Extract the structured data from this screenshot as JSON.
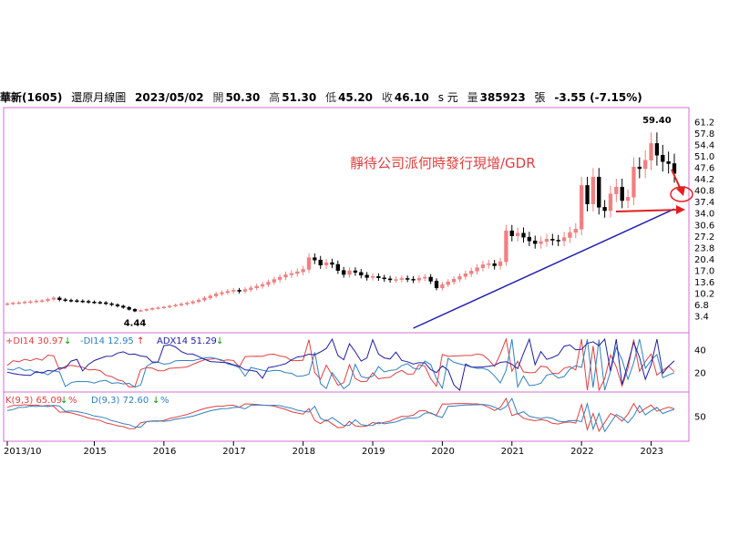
{
  "header": {
    "stock": "華新(1605)",
    "chart_name": "還原月線圖",
    "date": "2023/05/02",
    "open_label": "開",
    "open": "50.30",
    "high_label": "高",
    "high": "51.30",
    "low_label": "低",
    "low": "45.20",
    "close_label": "收",
    "close": "46.10",
    "unit": "s 元",
    "volume_label": "量",
    "volume": "385923",
    "volume_unit": "張",
    "change": "-3.55 (-7.15%)"
  },
  "annotation": "靜待公司派何時發行現增/GDR",
  "colors": {
    "up": "#f08080",
    "down": "#000000",
    "plus_di": "#e04040",
    "minus_di": "#3080c0",
    "adx": "#2020a0",
    "k": "#e04040",
    "d": "#3080c0",
    "trendline": "#2020b0",
    "arrow": "#e02020",
    "frame": "#d070d0"
  },
  "chart_data": [
    {
      "type": "candlestick",
      "title": "",
      "y_ticks": [
        61.2,
        57.8,
        54.4,
        51.0,
        47.6,
        44.2,
        40.8,
        37.4,
        34.0,
        30.6,
        27.2,
        23.8,
        20.4,
        17.0,
        13.6,
        10.2,
        6.8,
        3.4
      ],
      "ylim": [
        0,
        64.6
      ],
      "x_labels": [
        "2013/10",
        "2015",
        "2016",
        "2017",
        "2018",
        "2019",
        "2020",
        "2021",
        "2022",
        "2023"
      ],
      "x_label_months": [
        0,
        15,
        27,
        39,
        51,
        63,
        75,
        87,
        99,
        111
      ],
      "months": 116,
      "max_label": "59.40",
      "min_label": "4.44",
      "max_value": 59.4,
      "min_value": 4.44,
      "max_month": 112,
      "min_month": 22,
      "close": [
        7.3,
        7.5,
        7.6,
        7.8,
        7.9,
        8.1,
        8.2,
        8.6,
        9.0,
        8.5,
        8.3,
        8.2,
        8.1,
        8.0,
        7.8,
        7.7,
        7.6,
        7.3,
        7.0,
        6.6,
        6.2,
        5.6,
        5.1,
        5.3,
        5.6,
        5.9,
        6.1,
        6.3,
        6.6,
        6.9,
        7.2,
        7.5,
        7.9,
        8.4,
        9.0,
        9.6,
        10.2,
        10.6,
        11.0,
        11.3,
        11.0,
        11.5,
        12.0,
        12.5,
        13.0,
        13.7,
        14.5,
        15.2,
        15.9,
        16.3,
        16.8,
        17.5,
        21.0,
        20.3,
        18.8,
        19.5,
        19.0,
        17.2,
        16.0,
        17.1,
        16.6,
        15.8,
        15.1,
        15.4,
        15.0,
        14.7,
        14.4,
        14.5,
        14.8,
        14.6,
        14.3,
        14.9,
        15.2,
        14.0,
        12.0,
        13.0,
        13.8,
        14.6,
        15.4,
        16.2,
        17.0,
        18.0,
        18.9,
        19.2,
        18.6,
        19.8,
        29.0,
        27.5,
        28.3,
        27.1,
        26.0,
        25.2,
        25.8,
        26.5,
        26.2,
        26.0,
        27.0,
        28.5,
        29.5,
        42.5,
        37.0,
        45.0,
        36.0,
        35.0,
        40.0,
        42.0,
        38.0,
        39.0,
        48.0,
        47.5,
        50.0,
        55.0,
        51.5,
        49.6,
        49.0,
        46.1
      ],
      "ohlc": [],
      "trendline": {
        "from": {
          "month": 70,
          "value": 0.0
        },
        "to": {
          "month": 115,
          "value": 35.5
        }
      }
    },
    {
      "type": "line",
      "title": "",
      "series": [
        {
          "name": "+DI14",
          "label": "+DI14 30.97",
          "values": []
        },
        {
          "name": "-DI14",
          "label": "-DI14 12.95",
          "values": []
        },
        {
          "name": "ADX14",
          "label": "ADX14 51.29",
          "values": []
        }
      ],
      "y_ticks": [
        40,
        20
      ],
      "ylim": [
        5,
        50
      ]
    },
    {
      "type": "line",
      "title": "",
      "series": [
        {
          "name": "K(9,3)",
          "label": "K(9,3) 65.09",
          "values": []
        },
        {
          "name": "D(9,3)",
          "label": "D(9,3) 72.60",
          "values": []
        }
      ],
      "y_ticks": [
        50
      ],
      "ylim": [
        0,
        100
      ]
    }
  ]
}
